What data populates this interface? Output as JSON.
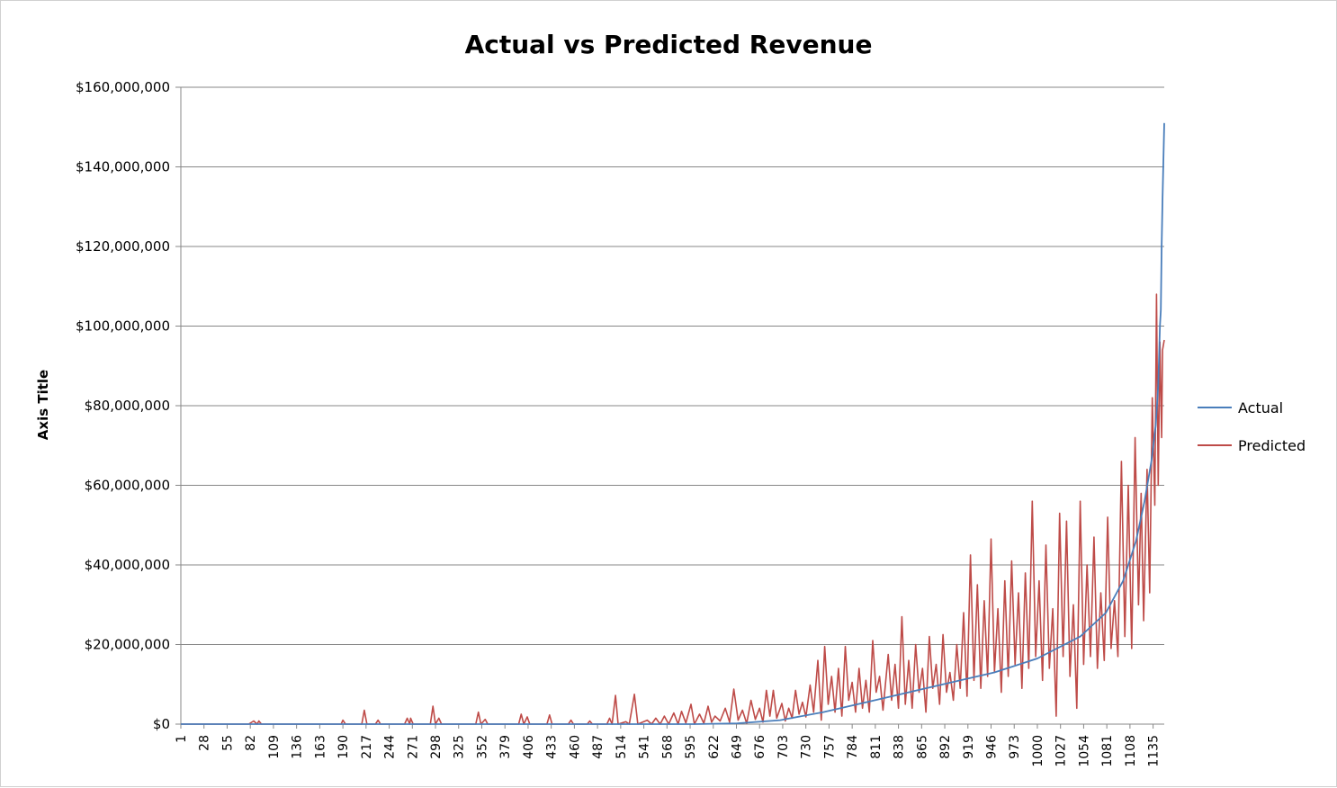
{
  "chart_data": {
    "type": "line",
    "title": "Actual vs Predicted Revenue",
    "xlabel": "",
    "ylabel": "Axis Title",
    "ylim": [
      0,
      160000000
    ],
    "xlim": [
      1,
      1148
    ],
    "y_ticks": [
      "$0",
      "$20,000,000",
      "$40,000,000",
      "$60,000,000",
      "$80,000,000",
      "$100,000,000",
      "$120,000,000",
      "$140,000,000",
      "$160,000,000"
    ],
    "x_ticks": [
      "1",
      "28",
      "55",
      "82",
      "109",
      "136",
      "163",
      "190",
      "217",
      "244",
      "271",
      "298",
      "325",
      "352",
      "379",
      "406",
      "433",
      "460",
      "487",
      "514",
      "541",
      "568",
      "595",
      "622",
      "649",
      "676",
      "703",
      "730",
      "757",
      "784",
      "811",
      "838",
      "865",
      "892",
      "919",
      "946",
      "973",
      "1000",
      "1027",
      "1054",
      "1081",
      "1108",
      "1135"
    ],
    "grid": true,
    "legend_position": "right",
    "series": [
      {
        "name": "Actual",
        "color": "#4a7ebb",
        "points": [
          [
            1,
            0
          ],
          [
            600,
            0
          ],
          [
            650,
            200000
          ],
          [
            700,
            1000000
          ],
          [
            750,
            3000000
          ],
          [
            800,
            5500000
          ],
          [
            850,
            8000000
          ],
          [
            900,
            10500000
          ],
          [
            950,
            13000000
          ],
          [
            1000,
            16500000
          ],
          [
            1050,
            22000000
          ],
          [
            1080,
            28000000
          ],
          [
            1100,
            36000000
          ],
          [
            1115,
            46000000
          ],
          [
            1125,
            56000000
          ],
          [
            1133,
            66000000
          ],
          [
            1138,
            75000000
          ],
          [
            1141,
            85000000
          ],
          [
            1143,
            100000000
          ],
          [
            1144,
            104000000
          ],
          [
            1145,
            120000000
          ],
          [
            1146,
            132000000
          ],
          [
            1147,
            141000000
          ],
          [
            1148,
            151000000
          ]
        ]
      },
      {
        "name": "Predicted",
        "color": "#be4b48",
        "points": [
          [
            1,
            0
          ],
          [
            80,
            0
          ],
          [
            86,
            800000
          ],
          [
            90,
            0
          ],
          [
            92,
            800000
          ],
          [
            95,
            0
          ],
          [
            188,
            0
          ],
          [
            190,
            1000000
          ],
          [
            193,
            0
          ],
          [
            212,
            0
          ],
          [
            215,
            3500000
          ],
          [
            218,
            0
          ],
          [
            228,
            0
          ],
          [
            231,
            1000000
          ],
          [
            234,
            0
          ],
          [
            262,
            0
          ],
          [
            265,
            1500000
          ],
          [
            268,
            0
          ],
          [
            269,
            1500000
          ],
          [
            272,
            0
          ],
          [
            292,
            0
          ],
          [
            295,
            4500000
          ],
          [
            298,
            0
          ],
          [
            302,
            1500000
          ],
          [
            305,
            0
          ],
          [
            345,
            0
          ],
          [
            348,
            3000000
          ],
          [
            351,
            0
          ],
          [
            356,
            1200000
          ],
          [
            359,
            0
          ],
          [
            395,
            0
          ],
          [
            398,
            2500000
          ],
          [
            401,
            0
          ],
          [
            405,
            1800000
          ],
          [
            408,
            0
          ],
          [
            428,
            0
          ],
          [
            431,
            2300000
          ],
          [
            434,
            0
          ],
          [
            453,
            0
          ],
          [
            456,
            1000000
          ],
          [
            459,
            0
          ],
          [
            475,
            0
          ],
          [
            478,
            800000
          ],
          [
            481,
            0
          ],
          [
            498,
            0
          ],
          [
            501,
            1500000
          ],
          [
            504,
            0
          ],
          [
            508,
            7200000
          ],
          [
            511,
            0
          ],
          [
            520,
            600000
          ],
          [
            524,
            0
          ],
          [
            530,
            7500000
          ],
          [
            534,
            0
          ],
          [
            545,
            1000000
          ],
          [
            550,
            0
          ],
          [
            555,
            1500000
          ],
          [
            560,
            0
          ],
          [
            565,
            2000000
          ],
          [
            570,
            0
          ],
          [
            576,
            2800000
          ],
          [
            581,
            0
          ],
          [
            585,
            3200000
          ],
          [
            590,
            300000
          ],
          [
            596,
            5000000
          ],
          [
            600,
            0
          ],
          [
            606,
            2500000
          ],
          [
            611,
            200000
          ],
          [
            616,
            4500000
          ],
          [
            620,
            500000
          ],
          [
            624,
            2000000
          ],
          [
            630,
            800000
          ],
          [
            636,
            4000000
          ],
          [
            641,
            500000
          ],
          [
            646,
            8800000
          ],
          [
            651,
            1000000
          ],
          [
            656,
            3500000
          ],
          [
            661,
            200000
          ],
          [
            666,
            6000000
          ],
          [
            671,
            1200000
          ],
          [
            676,
            4000000
          ],
          [
            680,
            500000
          ],
          [
            684,
            8500000
          ],
          [
            688,
            2000000
          ],
          [
            692,
            8500000
          ],
          [
            696,
            1500000
          ],
          [
            702,
            5200000
          ],
          [
            706,
            800000
          ],
          [
            710,
            4000000
          ],
          [
            714,
            1500000
          ],
          [
            718,
            8500000
          ],
          [
            722,
            2500000
          ],
          [
            726,
            5500000
          ],
          [
            730,
            1800000
          ],
          [
            735,
            9800000
          ],
          [
            739,
            3000000
          ],
          [
            744,
            16000000
          ],
          [
            748,
            1000000
          ],
          [
            752,
            19500000
          ],
          [
            756,
            5000000
          ],
          [
            760,
            12000000
          ],
          [
            764,
            3000000
          ],
          [
            768,
            14000000
          ],
          [
            772,
            2000000
          ],
          [
            776,
            19500000
          ],
          [
            780,
            6000000
          ],
          [
            784,
            10500000
          ],
          [
            788,
            3000000
          ],
          [
            792,
            14000000
          ],
          [
            796,
            4000000
          ],
          [
            800,
            11000000
          ],
          [
            804,
            3000000
          ],
          [
            808,
            21000000
          ],
          [
            812,
            8000000
          ],
          [
            816,
            12000000
          ],
          [
            820,
            3500000
          ],
          [
            826,
            17500000
          ],
          [
            830,
            6000000
          ],
          [
            834,
            15000000
          ],
          [
            838,
            4000000
          ],
          [
            842,
            27000000
          ],
          [
            846,
            5000000
          ],
          [
            850,
            16000000
          ],
          [
            854,
            4000000
          ],
          [
            858,
            20000000
          ],
          [
            862,
            8000000
          ],
          [
            866,
            14000000
          ],
          [
            870,
            3000000
          ],
          [
            874,
            22000000
          ],
          [
            878,
            9000000
          ],
          [
            882,
            15000000
          ],
          [
            886,
            5000000
          ],
          [
            890,
            22500000
          ],
          [
            894,
            8000000
          ],
          [
            898,
            13000000
          ],
          [
            902,
            6000000
          ],
          [
            906,
            20000000
          ],
          [
            910,
            9000000
          ],
          [
            914,
            28000000
          ],
          [
            918,
            7000000
          ],
          [
            922,
            42500000
          ],
          [
            926,
            11000000
          ],
          [
            930,
            35000000
          ],
          [
            934,
            9000000
          ],
          [
            938,
            31000000
          ],
          [
            942,
            12000000
          ],
          [
            946,
            46500000
          ],
          [
            950,
            13000000
          ],
          [
            954,
            29000000
          ],
          [
            958,
            8000000
          ],
          [
            962,
            36000000
          ],
          [
            966,
            12000000
          ],
          [
            970,
            41000000
          ],
          [
            974,
            15000000
          ],
          [
            978,
            33000000
          ],
          [
            982,
            9000000
          ],
          [
            986,
            38000000
          ],
          [
            990,
            14000000
          ],
          [
            994,
            56000000
          ],
          [
            998,
            17000000
          ],
          [
            1002,
            36000000
          ],
          [
            1006,
            11000000
          ],
          [
            1010,
            45000000
          ],
          [
            1014,
            14000000
          ],
          [
            1018,
            29000000
          ],
          [
            1022,
            2000000
          ],
          [
            1026,
            53000000
          ],
          [
            1030,
            17000000
          ],
          [
            1034,
            51000000
          ],
          [
            1038,
            12000000
          ],
          [
            1042,
            30000000
          ],
          [
            1046,
            4000000
          ],
          [
            1050,
            56000000
          ],
          [
            1054,
            15000000
          ],
          [
            1058,
            40000000
          ],
          [
            1062,
            17000000
          ],
          [
            1066,
            47000000
          ],
          [
            1070,
            14000000
          ],
          [
            1074,
            33000000
          ],
          [
            1078,
            16000000
          ],
          [
            1082,
            52000000
          ],
          [
            1086,
            19000000
          ],
          [
            1090,
            31000000
          ],
          [
            1094,
            17000000
          ],
          [
            1098,
            66000000
          ],
          [
            1102,
            22000000
          ],
          [
            1106,
            60000000
          ],
          [
            1110,
            19000000
          ],
          [
            1114,
            72000000
          ],
          [
            1118,
            30000000
          ],
          [
            1121,
            58000000
          ],
          [
            1124,
            26000000
          ],
          [
            1128,
            64000000
          ],
          [
            1131,
            33000000
          ],
          [
            1134,
            82000000
          ],
          [
            1137,
            55000000
          ],
          [
            1139,
            108000000
          ],
          [
            1141,
            60000000
          ],
          [
            1143,
            96000000
          ],
          [
            1145,
            72000000
          ],
          [
            1146,
            94000000
          ],
          [
            1148,
            96500000
          ]
        ]
      }
    ]
  }
}
